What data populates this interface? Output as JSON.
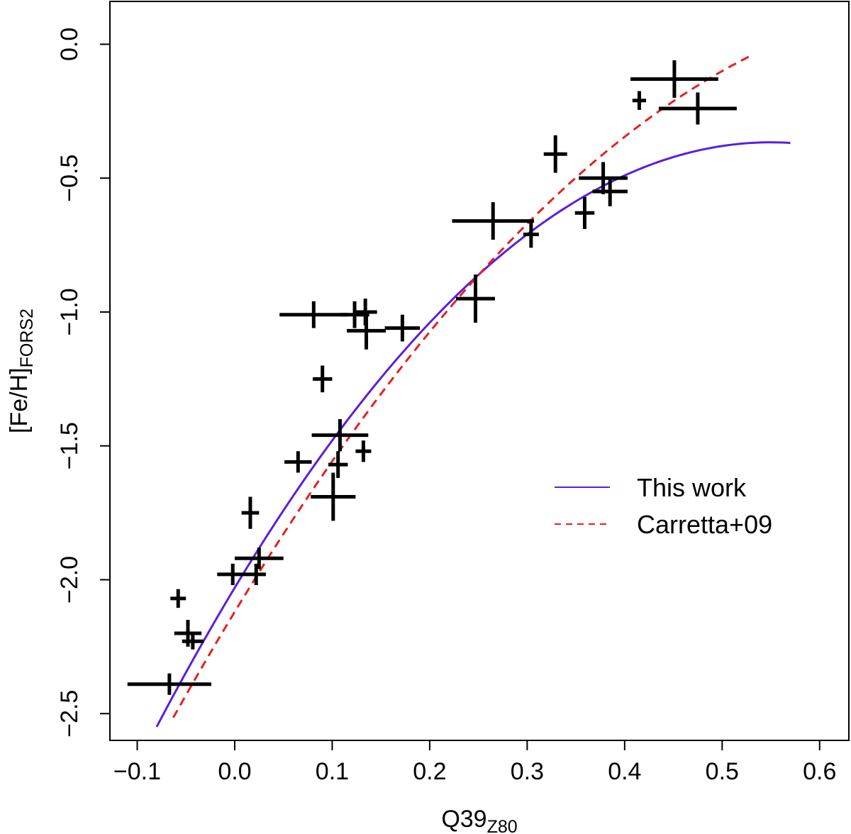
{
  "chart_data": {
    "type": "scatter",
    "title": "",
    "xlabel": "Q39",
    "xlabel_sub": "Z80",
    "ylabel": "[Fe/H]",
    "ylabel_sub": "FORS2",
    "xlim": [
      -0.128,
      0.63
    ],
    "ylim": [
      -2.6,
      0.16
    ],
    "xticks": [
      -0.1,
      0.0,
      0.1,
      0.2,
      0.3,
      0.4,
      0.5,
      0.6
    ],
    "xtick_labels": [
      "−0.1",
      "0.0",
      "0.1",
      "0.2",
      "0.3",
      "0.4",
      "0.5",
      "0.6"
    ],
    "yticks": [
      -2.5,
      -2.0,
      -1.5,
      -1.0,
      -0.5,
      0.0
    ],
    "ytick_labels": [
      "−2.5",
      "−2.0",
      "−1.5",
      "−1.0",
      "−0.5",
      "0.0"
    ],
    "legend": {
      "position": "right",
      "entries": [
        {
          "label": "This work",
          "color": "#5a1ee0",
          "style": "solid"
        },
        {
          "label": "Carretta+09",
          "color": "#e81f1f",
          "style": "dashed"
        }
      ]
    },
    "series": [
      {
        "name": "data",
        "type": "errorbar",
        "color": "#000000",
        "points": [
          {
            "x": 0.451,
            "y": -0.13,
            "xerr": 0.045,
            "yerr": 0.07
          },
          {
            "x": 0.475,
            "y": -0.24,
            "xerr": 0.04,
            "yerr": 0.06
          },
          {
            "x": 0.415,
            "y": -0.21,
            "xerr": 0.007,
            "yerr": 0.035
          },
          {
            "x": 0.329,
            "y": -0.41,
            "xerr": 0.012,
            "yerr": 0.07
          },
          {
            "x": 0.378,
            "y": -0.5,
            "xerr": 0.025,
            "yerr": 0.06
          },
          {
            "x": 0.385,
            "y": -0.55,
            "xerr": 0.018,
            "yerr": 0.055
          },
          {
            "x": 0.359,
            "y": -0.63,
            "xerr": 0.01,
            "yerr": 0.06
          },
          {
            "x": 0.265,
            "y": -0.66,
            "xerr": 0.042,
            "yerr": 0.07
          },
          {
            "x": 0.304,
            "y": -0.71,
            "xerr": 0.008,
            "yerr": 0.05
          },
          {
            "x": 0.247,
            "y": -0.95,
            "xerr": 0.02,
            "yerr": 0.09
          },
          {
            "x": 0.081,
            "y": -1.01,
            "xerr": 0.035,
            "yerr": 0.05
          },
          {
            "x": 0.123,
            "y": -1.01,
            "xerr": 0.015,
            "yerr": 0.05
          },
          {
            "x": 0.134,
            "y": -1.0,
            "xerr": 0.012,
            "yerr": 0.05
          },
          {
            "x": 0.135,
            "y": -1.07,
            "xerr": 0.02,
            "yerr": 0.07
          },
          {
            "x": 0.172,
            "y": -1.06,
            "xerr": 0.018,
            "yerr": 0.05
          },
          {
            "x": 0.09,
            "y": -1.25,
            "xerr": 0.01,
            "yerr": 0.05
          },
          {
            "x": 0.108,
            "y": -1.46,
            "xerr": 0.029,
            "yerr": 0.06
          },
          {
            "x": 0.132,
            "y": -1.52,
            "xerr": 0.008,
            "yerr": 0.04
          },
          {
            "x": 0.106,
            "y": -1.57,
            "xerr": 0.01,
            "yerr": 0.05
          },
          {
            "x": 0.065,
            "y": -1.56,
            "xerr": 0.014,
            "yerr": 0.04
          },
          {
            "x": 0.101,
            "y": -1.69,
            "xerr": 0.023,
            "yerr": 0.09
          },
          {
            "x": 0.016,
            "y": -1.75,
            "xerr": 0.009,
            "yerr": 0.06
          },
          {
            "x": 0.025,
            "y": -1.92,
            "xerr": 0.025,
            "yerr": 0.04
          },
          {
            "x": -0.002,
            "y": -1.98,
            "xerr": 0.016,
            "yerr": 0.04
          },
          {
            "x": 0.022,
            "y": -1.98,
            "xerr": 0.01,
            "yerr": 0.04
          },
          {
            "x": -0.058,
            "y": -2.07,
            "xerr": 0.008,
            "yerr": 0.035
          },
          {
            "x": -0.048,
            "y": -2.2,
            "xerr": 0.014,
            "yerr": 0.05
          },
          {
            "x": -0.043,
            "y": -2.23,
            "xerr": 0.011,
            "yerr": 0.03
          },
          {
            "x": -0.067,
            "y": -2.39,
            "xerr": 0.043,
            "yerr": 0.04
          }
        ]
      },
      {
        "name": "This work",
        "type": "curve",
        "color": "#5a1ee0",
        "style": "solid",
        "x_range": [
          -0.08,
          0.57
        ],
        "poly": [
          -2.03,
          6.05,
          -5.5
        ]
      },
      {
        "name": "Carretta+09",
        "type": "curve",
        "color": "#e81f1f",
        "style": "dashed",
        "x_range": [
          -0.063,
          0.53
        ],
        "poly": [
          -2.12,
          6.02,
          -3.96
        ]
      }
    ]
  }
}
